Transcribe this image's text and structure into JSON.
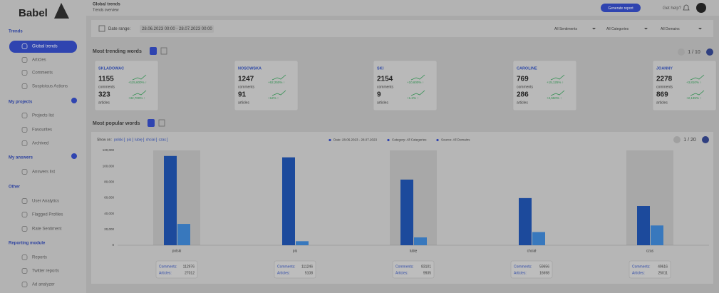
{
  "sidebar": {
    "logo": "Babel",
    "sections": [
      {
        "title": "Trends",
        "items": [
          "Global trends",
          "Articles",
          "Comments",
          "Suspicious Actions"
        ]
      },
      {
        "title": "My projects",
        "items": [
          "Projects list",
          "Favourites",
          "Archived"
        ]
      },
      {
        "title": "My answers",
        "items": [
          "Answers list"
        ]
      },
      {
        "title": "Other",
        "items": [
          "User Analytics",
          "Flagged Profiles",
          "Rate Sentiment"
        ]
      },
      {
        "title": "Reporting module",
        "items": [
          "Reports",
          "Twitter reports",
          "Ad analyzer"
        ]
      }
    ]
  },
  "header": {
    "title": "Global trends",
    "subtitle": "Trends overview",
    "button": "Generate report",
    "help": "Get help?"
  },
  "filters": {
    "date_label": "Date range:",
    "date_value": "28.06.2023 00:00 - 28.07.2023 00:00",
    "dropdowns": [
      "All Sentiments",
      "All Categories",
      "All Domains"
    ]
  },
  "trending": {
    "title": "Most trending words",
    "pagination": "1 / 10",
    "cards": [
      {
        "word": "SKLADOWAC",
        "comments": 1155,
        "comments_label": "comments",
        "comments_change": "+115,600% ↑",
        "articles": 323,
        "articles_label": "articles",
        "articles_change": "+32,700% ↑"
      },
      {
        "word": "NOSOWSKA",
        "comments": 1247,
        "comments_label": "comments",
        "comments_change": "+62,250% ↑",
        "articles": 91,
        "articles_label": "articles",
        "articles_change": "+12% ↑"
      },
      {
        "word": "SKI",
        "comments": 2154,
        "comments_label": "comments",
        "comments_change": "+10,600% ↑",
        "articles": 9,
        "articles_label": "articles",
        "articles_change": "+1.2% ↑"
      },
      {
        "word": "CAROLINE",
        "comments": 769,
        "comments_label": "comments",
        "comments_change": "+15,125% ↑",
        "articles": 286,
        "articles_label": "articles",
        "articles_change": "+2,550% ↑"
      },
      {
        "word": "JOANNY",
        "comments": 2278,
        "comments_label": "comments",
        "comments_change": "+3,810% ↑",
        "articles": 869,
        "articles_label": "articles",
        "articles_change": "+2,135% ↑"
      }
    ]
  },
  "popular": {
    "title": "Most popular words",
    "show_on_label": "Show on:",
    "show_on_words": [
      "polski",
      "pis",
      "lubię",
      "chciał",
      "czas"
    ],
    "legend": [
      "Date: 28.06.2023 - 28.07.2023",
      "Category: All Categories",
      "Source: All Domains"
    ],
    "pagination": "1 / 20",
    "chart_data": {
      "type": "bar",
      "categories": [
        "polski",
        "pis",
        "lubię",
        "chciał",
        "czas"
      ],
      "series": [
        {
          "name": "Comments:",
          "color": "#1c4a9c",
          "values": [
            112976,
            111246,
            83101,
            59656,
            49616
          ]
        },
        {
          "name": "Articles:",
          "color": "#3878bd",
          "values": [
            27012,
            5108,
            9935,
            16698,
            25011
          ]
        }
      ],
      "ylim": [
        0,
        120000
      ],
      "yticks": [
        0,
        {
          "value": 20000,
          "label": "20,000"
        },
        {
          "value": 40000,
          "label": "40,000"
        },
        {
          "value": 60000,
          "label": "60,000"
        },
        {
          "value": 80000,
          "label": "80,000"
        },
        {
          "value": 100000,
          "label": "100,000"
        },
        {
          "value": 120000,
          "label": "120,000"
        }
      ],
      "grid": false
    }
  }
}
